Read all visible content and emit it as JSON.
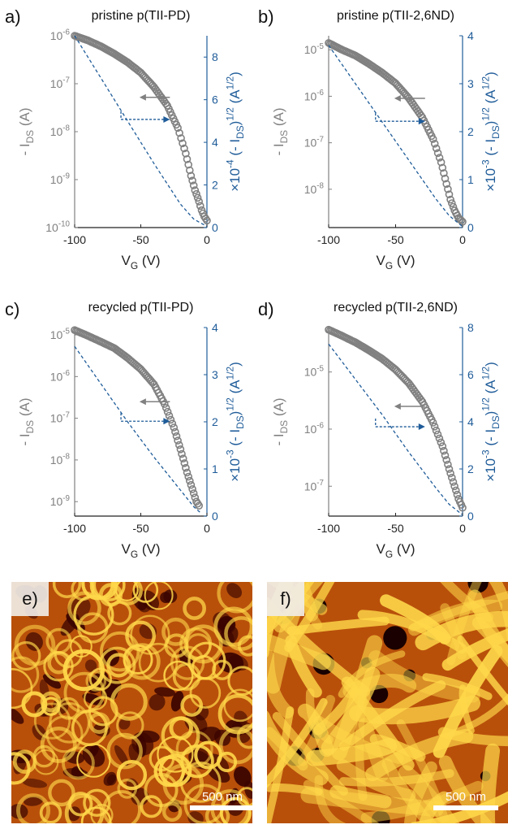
{
  "colors": {
    "gray": "#808080",
    "blue": "#1f5c99",
    "afm_dark": "#3a0400",
    "afm_mid": "#b8500a",
    "afm_light": "#ffd84a"
  },
  "chart_data": [
    {
      "panel": "a)",
      "title": "pristine p(TII-PD)",
      "type": "scatter",
      "xlabel": "V_G (V)",
      "xlim": [
        -100,
        0
      ],
      "xticks": [
        -100,
        -50,
        0
      ],
      "left_axis": {
        "label": "- I_DS (A)",
        "scale": "log",
        "ylim": [
          1e-10,
          1e-06
        ],
        "ticks": [
          {
            "value": 1e-10,
            "label": "10^-10"
          },
          {
            "value": 1e-09,
            "label": "10^-9"
          },
          {
            "value": 1e-08,
            "label": "10^-8"
          },
          {
            "value": 1e-07,
            "label": "10^-7"
          },
          {
            "value": 1e-06,
            "label": "10^-6"
          }
        ]
      },
      "right_axis": {
        "label": "×10^-4 (- I_DS)^1/2 (A^1/2)",
        "ylim": [
          0,
          9
        ],
        "ticks": [
          0,
          2,
          4,
          6,
          8
        ]
      },
      "series": [
        {
          "axis": "left",
          "style": "open-circles",
          "points": [
            [
              -100,
              1e-06
            ],
            [
              -90,
              8e-07
            ],
            [
              -80,
              6e-07
            ],
            [
              -70,
              4.2e-07
            ],
            [
              -60,
              2.8e-07
            ],
            [
              -50,
              1.7e-07
            ],
            [
              -40,
              8.5e-08
            ],
            [
              -30,
              3.5e-08
            ],
            [
              -22,
              1.2e-08
            ],
            [
              -16,
              3.5e-09
            ],
            [
              -12,
              1.2e-09
            ],
            [
              -9,
              6e-10
            ],
            [
              -6,
              3.5e-10
            ],
            [
              -4,
              2.3e-10
            ],
            [
              -2,
              1.7e-10
            ],
            [
              0,
              1.4e-10
            ]
          ]
        },
        {
          "axis": "right",
          "style": "dashed",
          "points": [
            [
              -100,
              9.0
            ],
            [
              -80,
              7.0
            ],
            [
              -60,
              5.0
            ],
            [
              -40,
              3.0
            ],
            [
              -20,
              1.1
            ],
            [
              -10,
              0.4
            ],
            [
              0,
              0.05
            ]
          ]
        }
      ],
      "arrows": [
        {
          "points_to": "left",
          "y": 5.2e-08
        },
        {
          "points_to": "right",
          "y": 1.8e-08
        }
      ]
    },
    {
      "panel": "b)",
      "title": "pristine p(TII-2,6ND)",
      "type": "scatter",
      "xlabel": "V_G (V)",
      "xlim": [
        -100,
        0
      ],
      "xticks": [
        -100,
        -50,
        0
      ],
      "left_axis": {
        "label": "- I_DS (A)",
        "scale": "log",
        "ylim": [
          1.5e-09,
          2e-05
        ],
        "ticks": [
          {
            "value": 1e-08,
            "label": "10^-8"
          },
          {
            "value": 1e-07,
            "label": "10^-7"
          },
          {
            "value": 1e-06,
            "label": "10^-6"
          },
          {
            "value": 1e-05,
            "label": "10^-5"
          }
        ]
      },
      "right_axis": {
        "label": "×10^-3 (- I_DS)^1/2 (A^1/2)",
        "ylim": [
          0,
          4
        ],
        "ticks": [
          0,
          1,
          2,
          3,
          4
        ]
      },
      "series": [
        {
          "axis": "left",
          "style": "open-circles",
          "points": [
            [
              -100,
              1.4e-05
            ],
            [
              -90,
              1e-05
            ],
            [
              -80,
              7.5e-06
            ],
            [
              -70,
              5e-06
            ],
            [
              -60,
              3.2e-06
            ],
            [
              -50,
              1.9e-06
            ],
            [
              -40,
              9e-07
            ],
            [
              -30,
              3.5e-07
            ],
            [
              -22,
              1.2e-07
            ],
            [
              -16,
              3.8e-08
            ],
            [
              -12,
              1.3e-08
            ],
            [
              -9,
              6e-09
            ],
            [
              -6,
              3.5e-09
            ],
            [
              -3,
              2.4e-09
            ],
            [
              0,
              2e-09
            ]
          ]
        },
        {
          "axis": "right",
          "style": "dashed",
          "points": [
            [
              -100,
              3.8
            ],
            [
              -80,
              3.0
            ],
            [
              -60,
              2.2
            ],
            [
              -40,
              1.4
            ],
            [
              -20,
              0.6
            ],
            [
              -10,
              0.25
            ],
            [
              0,
              0.02
            ]
          ]
        }
      ],
      "arrows": [
        {
          "points_to": "left",
          "y": 9e-07
        },
        {
          "points_to": "right",
          "y": 2.9e-07
        }
      ]
    },
    {
      "panel": "c)",
      "title": "recycled p(TII-PD)",
      "type": "scatter",
      "xlabel": "V_G (V)",
      "xlim": [
        -100,
        0
      ],
      "xticks": [
        -100,
        -50,
        0
      ],
      "left_axis": {
        "label": "- I_DS (A)",
        "scale": "log",
        "ylim": [
          4.5e-10,
          1.5e-05
        ],
        "ticks": [
          {
            "value": 1e-09,
            "label": "10^-9"
          },
          {
            "value": 1e-08,
            "label": "10^-8"
          },
          {
            "value": 1e-07,
            "label": "10^-7"
          },
          {
            "value": 1e-06,
            "label": "10^-6"
          },
          {
            "value": 1e-05,
            "label": "10^-5"
          }
        ]
      },
      "right_axis": {
        "label": "×10^-3 (- I_DS)^1/2 (A^1/2)",
        "ylim": [
          0,
          4
        ],
        "ticks": [
          0,
          1,
          2,
          3,
          4
        ]
      },
      "series": [
        {
          "axis": "left",
          "style": "open-circles",
          "points": [
            [
              -100,
              1.3e-05
            ],
            [
              -90,
              9.5e-06
            ],
            [
              -80,
              6.8e-06
            ],
            [
              -70,
              4.8e-06
            ],
            [
              -60,
              2.8e-06
            ],
            [
              -50,
              1.5e-06
            ],
            [
              -40,
              6.5e-07
            ],
            [
              -32,
              2.2e-07
            ],
            [
              -25,
              6e-08
            ],
            [
              -20,
              1.8e-08
            ],
            [
              -15,
              5e-09
            ],
            [
              -11,
              2e-09
            ],
            [
              -8,
              1e-09
            ],
            [
              -6,
              8e-10
            ]
          ]
        },
        {
          "axis": "right",
          "style": "dashed",
          "points": [
            [
              -100,
              3.6
            ],
            [
              -80,
              2.8
            ],
            [
              -60,
              2.0
            ],
            [
              -40,
              1.25
            ],
            [
              -20,
              0.55
            ],
            [
              -10,
              0.2
            ],
            [
              -4,
              0.05
            ]
          ]
        }
      ],
      "arrows": [
        {
          "points_to": "left",
          "y": 2.5e-07
        },
        {
          "points_to": "right",
          "y": 8.5e-08
        }
      ]
    },
    {
      "panel": "d)",
      "title": "recycled p(TII-2,6ND)",
      "type": "scatter",
      "xlabel": "V_G (V)",
      "xlim": [
        -100,
        0
      ],
      "xticks": [
        -100,
        -50,
        0
      ],
      "left_axis": {
        "label": "- I_DS (A)",
        "scale": "log",
        "ylim": [
          3e-08,
          6e-05
        ],
        "ticks": [
          {
            "value": 1e-07,
            "label": "10^-7"
          },
          {
            "value": 1e-06,
            "label": "10^-6"
          },
          {
            "value": 1e-05,
            "label": "10^-5"
          }
        ]
      },
      "right_axis": {
        "label": "×10^-3 (- I_DS)^1/2 (A^1/2)",
        "ylim": [
          0,
          8
        ],
        "ticks": [
          0,
          2,
          4,
          6,
          8
        ]
      },
      "series": [
        {
          "axis": "left",
          "style": "open-circles",
          "points": [
            [
              -100,
              5.5e-05
            ],
            [
              -90,
              4.3e-05
            ],
            [
              -80,
              3.3e-05
            ],
            [
              -70,
              2.4e-05
            ],
            [
              -60,
              1.7e-05
            ],
            [
              -50,
              1.1e-05
            ],
            [
              -40,
              6.3e-06
            ],
            [
              -30,
              3e-06
            ],
            [
              -22,
              1.3e-06
            ],
            [
              -15,
              5e-07
            ],
            [
              -10,
              2e-07
            ],
            [
              -6,
              1e-07
            ],
            [
              -3,
              6e-08
            ],
            [
              0,
              4.2e-08
            ]
          ]
        },
        {
          "axis": "right",
          "style": "dashed",
          "points": [
            [
              -100,
              7.3
            ],
            [
              -80,
              5.8
            ],
            [
              -60,
              4.3
            ],
            [
              -40,
              2.7
            ],
            [
              -20,
              1.2
            ],
            [
              -10,
              0.5
            ],
            [
              0,
              0.05
            ]
          ]
        }
      ],
      "arrows": [
        {
          "points_to": "left",
          "y": 2.5e-06
        },
        {
          "points_to": "right",
          "y": 1.1e-06
        }
      ]
    }
  ],
  "afm_images": [
    {
      "panel": "e)",
      "scale_label": "500 nm",
      "morphology": "fibrous-network-small-pores"
    },
    {
      "panel": "f)",
      "scale_label": "500 nm",
      "morphology": "fiber-bundles-large-voids"
    }
  ]
}
